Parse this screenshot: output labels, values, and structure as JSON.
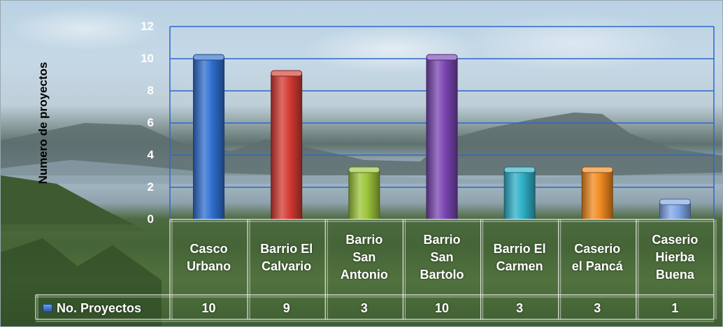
{
  "chart_data": {
    "type": "bar",
    "ylabel": "Numero de proyectos",
    "ylim": [
      0,
      12
    ],
    "yticks": [
      "0",
      "2",
      "4",
      "6",
      "8",
      "10",
      "12"
    ],
    "grid": true,
    "categories": [
      [
        "Casco",
        "Urbano"
      ],
      [
        "Barrio El",
        "Calvario"
      ],
      [
        "Barrio",
        "San",
        "Antonio"
      ],
      [
        "Barrio",
        "San",
        "Bartolo"
      ],
      [
        "Barrio El",
        "Carmen"
      ],
      [
        "Caserio",
        "el Pancá"
      ],
      [
        "Caserio",
        "Hierba",
        "Buena"
      ]
    ],
    "series": [
      {
        "name": "No. Proyectos",
        "values": [
          10,
          9,
          3,
          10,
          3,
          3,
          1
        ]
      }
    ],
    "value_labels": [
      "10",
      "9",
      "3",
      "10",
      "3",
      "3",
      "1"
    ],
    "bar_colors": [
      "#2f6fd0",
      "#d43a32",
      "#9cc43a",
      "#7a45b2",
      "#2eb0c8",
      "#f08a20",
      "#7fa6e8"
    ],
    "legend_placement": "data-table"
  }
}
